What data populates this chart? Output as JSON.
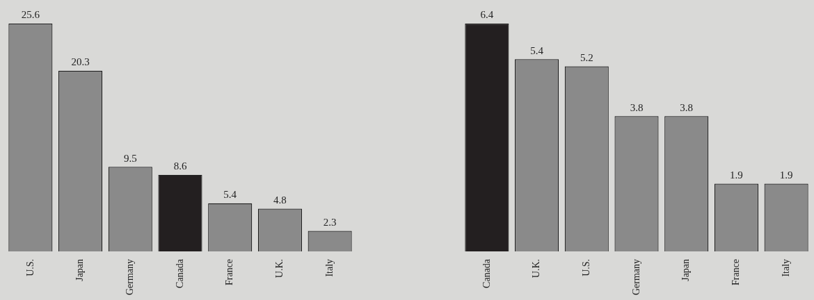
{
  "chart_data": [
    {
      "type": "bar",
      "categories": [
        "U.S.",
        "Japan",
        "Germany",
        "Canada",
        "France",
        "U.K.",
        "Italy"
      ],
      "values": [
        25.6,
        20.3,
        9.5,
        8.6,
        5.4,
        4.8,
        2.3
      ],
      "colors": [
        "#8a8a8a",
        "#8a8a8a",
        "#8a8a8a",
        "#231f20",
        "#8a8a8a",
        "#8a8a8a",
        "#8a8a8a"
      ],
      "data_labels": true
    },
    {
      "type": "bar",
      "categories": [
        "Canada",
        "U.K.",
        "U.S.",
        "Germany",
        "Japan",
        "France",
        "Italy"
      ],
      "values": [
        6.4,
        5.4,
        5.2,
        3.8,
        3.8,
        1.9,
        1.9
      ],
      "colors": [
        "#231f20",
        "#8a8a8a",
        "#8a8a8a",
        "#8a8a8a",
        "#8a8a8a",
        "#8a8a8a",
        "#8a8a8a"
      ],
      "data_labels": true
    }
  ]
}
